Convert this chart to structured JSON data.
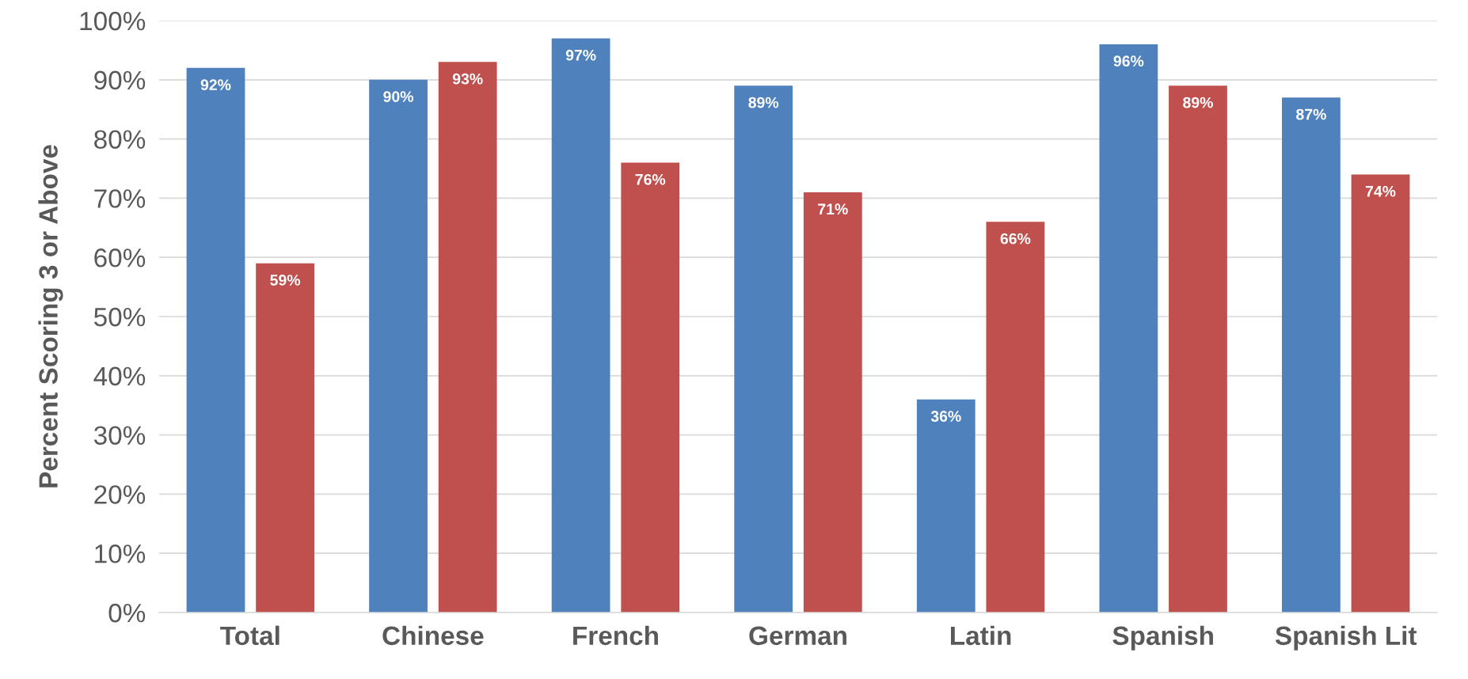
{
  "chart_data": {
    "type": "bar",
    "ylabel": "Percent Scoring 3 or Above",
    "categories": [
      "Total",
      "Chinese",
      "French",
      "German",
      "Latin",
      "Spanish",
      "Spanish Lit"
    ],
    "series": [
      {
        "color": "#4f81bd",
        "values": [
          92,
          90,
          97,
          89,
          36,
          96,
          87
        ],
        "value_labels": [
          "92%",
          "90%",
          "97%",
          "89%",
          "36%",
          "96%",
          "87%"
        ]
      },
      {
        "color": "#c0504d",
        "values": [
          59,
          93,
          76,
          71,
          66,
          89,
          74
        ],
        "value_labels": [
          "59%",
          "93%",
          "76%",
          "71%",
          "66%",
          "89%",
          "74%"
        ]
      }
    ],
    "ylim": [
      0,
      100
    ],
    "yticks": [
      {
        "value": 0,
        "label": "0%"
      },
      {
        "value": 10,
        "label": "10%"
      },
      {
        "value": 20,
        "label": "20%"
      },
      {
        "value": 30,
        "label": "30%"
      },
      {
        "value": 40,
        "label": "40%"
      },
      {
        "value": 50,
        "label": "50%"
      },
      {
        "value": 60,
        "label": "60%"
      },
      {
        "value": 70,
        "label": "70%"
      },
      {
        "value": 80,
        "label": "80%"
      },
      {
        "value": 90,
        "label": "90%"
      },
      {
        "value": 100,
        "label": "100%"
      }
    ],
    "grid": "y"
  }
}
